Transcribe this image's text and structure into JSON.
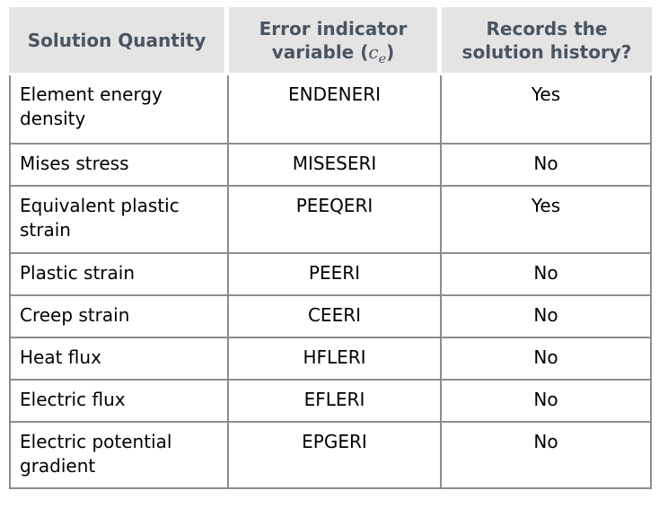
{
  "table": {
    "header": {
      "col1": "Solution Quantity",
      "col2": {
        "prefix": "Error indicator\nvariable (",
        "var": "c",
        "sub": "e",
        "suffix": ")"
      },
      "col3": "Records the\nsolution history?"
    },
    "rows": [
      {
        "quantity": "Element energy density",
        "variable": "ENDENERI",
        "history": "Yes"
      },
      {
        "quantity": "Mises stress",
        "variable": "MISESERI",
        "history": "No"
      },
      {
        "quantity": "Equivalent plastic strain",
        "variable": "PEEQERI",
        "history": "Yes"
      },
      {
        "quantity": "Plastic strain",
        "variable": "PEERI",
        "history": "No"
      },
      {
        "quantity": "Creep strain",
        "variable": "CEERI",
        "history": "No"
      },
      {
        "quantity": "Heat flux",
        "variable": "HFLERI",
        "history": "No"
      },
      {
        "quantity": "Electric flux",
        "variable": "EFLERI",
        "history": "No"
      },
      {
        "quantity": "Electric potential gradient",
        "variable": "EPGERI",
        "history": "No"
      }
    ],
    "colors": {
      "header_bg": "#e4e4e4",
      "header_text": "#4a5561",
      "border": "#8d8d8d",
      "body_text": "#000000",
      "page_bg": "#ffffff"
    }
  }
}
